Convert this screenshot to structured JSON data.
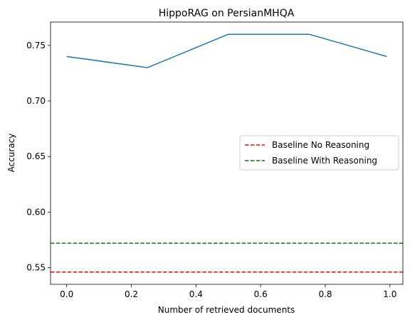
{
  "chart_data": {
    "type": "line",
    "title": "HippoRAG on PersianMHQA",
    "xlabel": "Number of retrieved documents",
    "ylabel": "Accuracy",
    "xlim": [
      -0.05,
      1.04
    ],
    "ylim": [
      0.535,
      0.771
    ],
    "xticks": [
      0.0,
      0.2,
      0.4,
      0.6,
      0.8,
      1.0
    ],
    "xtick_labels": [
      "0.0",
      "0.2",
      "0.4",
      "0.6",
      "0.8",
      "1.0"
    ],
    "yticks": [
      0.55,
      0.6,
      0.65,
      0.7,
      0.75
    ],
    "ytick_labels": [
      "0.55",
      "0.60",
      "0.65",
      "0.70",
      "0.75"
    ],
    "grid": false,
    "legend_position": "center-right",
    "series": [
      {
        "x": [
          0.0,
          0.25,
          0.5,
          0.75,
          0.99
        ],
        "y": [
          0.74,
          0.73,
          0.76,
          0.76,
          0.74
        ],
        "color": "#1f77b4",
        "style": "solid"
      }
    ],
    "reference_lines": [
      {
        "name": "Baseline No Reasoning",
        "y": 0.546,
        "color": "#ff0000",
        "style": "dashed"
      },
      {
        "name": "Baseline With Reasoning",
        "y": 0.572,
        "color": "#008000",
        "style": "dashed"
      }
    ]
  }
}
